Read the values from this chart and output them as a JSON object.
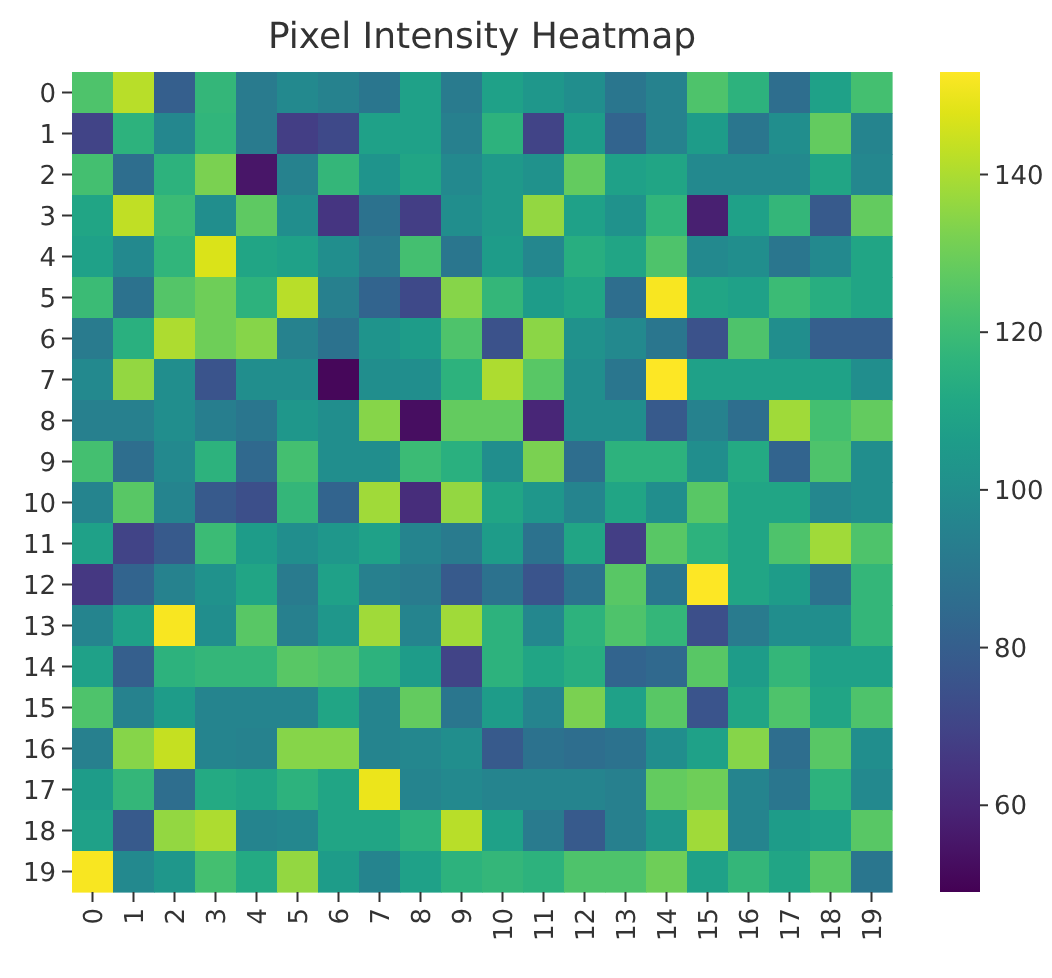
{
  "chart_data": {
    "type": "heatmap",
    "title": "Pixel Intensity Heatmap",
    "categories": [
      "0",
      "1",
      "2",
      "3",
      "4",
      "5",
      "6",
      "7",
      "8",
      "9",
      "10",
      "11",
      "12",
      "13",
      "14",
      "15",
      "16",
      "17",
      "18",
      "19"
    ],
    "y_categories": [
      "0",
      "1",
      "2",
      "3",
      "4",
      "5",
      "6",
      "7",
      "8",
      "9",
      "10",
      "11",
      "12",
      "13",
      "14",
      "15",
      "16",
      "17",
      "18",
      "19"
    ],
    "cells": [
      [
        124,
        142,
        80,
        118,
        92,
        98,
        95,
        90,
        108,
        92,
        108,
        104,
        100,
        90,
        95,
        124,
        116,
        86,
        108,
        122
      ],
      [
        70,
        116,
        97,
        117,
        92,
        68,
        72,
        108,
        108,
        94,
        116,
        70,
        106,
        82,
        95,
        106,
        90,
        100,
        128,
        96
      ],
      [
        122,
        86,
        116,
        132,
        55,
        95,
        118,
        103,
        110,
        98,
        105,
        102,
        128,
        108,
        110,
        98,
        98,
        98,
        110,
        97
      ],
      [
        110,
        143,
        120,
        100,
        127,
        100,
        65,
        88,
        68,
        100,
        105,
        136,
        108,
        102,
        117,
        58,
        108,
        118,
        78,
        128
      ],
      [
        108,
        98,
        117,
        147,
        110,
        108,
        100,
        92,
        122,
        90,
        106,
        97,
        114,
        110,
        124,
        98,
        100,
        90,
        98,
        110
      ],
      [
        120,
        88,
        125,
        130,
        116,
        142,
        94,
        82,
        72,
        134,
        118,
        106,
        110,
        86,
        152,
        110,
        108,
        120,
        114,
        110
      ],
      [
        92,
        115,
        140,
        130,
        134,
        95,
        88,
        103,
        106,
        124,
        75,
        135,
        102,
        98,
        90,
        75,
        124,
        100,
        80,
        80
      ],
      [
        98,
        136,
        100,
        76,
        100,
        100,
        51,
        100,
        100,
        116,
        140,
        126,
        100,
        90,
        153,
        108,
        108,
        108,
        109,
        100
      ],
      [
        94,
        94,
        100,
        93,
        90,
        104,
        100,
        134,
        53,
        128,
        128,
        60,
        100,
        100,
        78,
        95,
        86,
        138,
        122,
        128
      ],
      [
        122,
        86,
        98,
        116,
        84,
        122,
        100,
        100,
        120,
        115,
        100,
        132,
        86,
        116,
        116,
        100,
        112,
        82,
        124,
        100
      ],
      [
        96,
        126,
        96,
        78,
        74,
        118,
        82,
        138,
        62,
        136,
        110,
        104,
        96,
        110,
        100,
        126,
        110,
        110,
        97,
        100
      ],
      [
        108,
        70,
        78,
        120,
        106,
        100,
        104,
        108,
        96,
        92,
        106,
        88,
        110,
        68,
        126,
        116,
        110,
        124,
        138,
        124
      ],
      [
        66,
        82,
        95,
        102,
        110,
        92,
        108,
        94,
        92,
        78,
        88,
        76,
        88,
        126,
        90,
        153,
        110,
        106,
        88,
        118
      ],
      [
        96,
        108,
        152,
        100,
        126,
        94,
        104,
        138,
        96,
        138,
        116,
        97,
        116,
        124,
        118,
        74,
        92,
        100,
        100,
        118
      ],
      [
        108,
        80,
        116,
        118,
        118,
        126,
        124,
        116,
        106,
        70,
        116,
        110,
        114,
        82,
        84,
        126,
        106,
        118,
        108,
        108
      ],
      [
        124,
        95,
        106,
        96,
        96,
        96,
        110,
        96,
        128,
        90,
        106,
        96,
        132,
        108,
        126,
        76,
        110,
        124,
        110,
        124
      ],
      [
        94,
        134,
        144,
        96,
        95,
        134,
        134,
        96,
        97,
        100,
        78,
        88,
        86,
        88,
        100,
        108,
        134,
        86,
        126,
        100
      ],
      [
        106,
        118,
        86,
        112,
        110,
        116,
        110,
        150,
        96,
        98,
        96,
        96,
        96,
        94,
        128,
        130,
        96,
        90,
        116,
        98
      ],
      [
        108,
        78,
        136,
        140,
        96,
        97,
        110,
        110,
        116,
        142,
        108,
        92,
        78,
        94,
        104,
        138,
        96,
        106,
        108,
        126
      ],
      [
        152,
        98,
        104,
        122,
        112,
        136,
        106,
        96,
        108,
        116,
        118,
        116,
        124,
        124,
        130,
        108,
        118,
        110,
        126,
        90
      ]
    ],
    "clim": [
      49,
      153
    ],
    "cticks": [
      60,
      80,
      100,
      120,
      140
    ]
  }
}
